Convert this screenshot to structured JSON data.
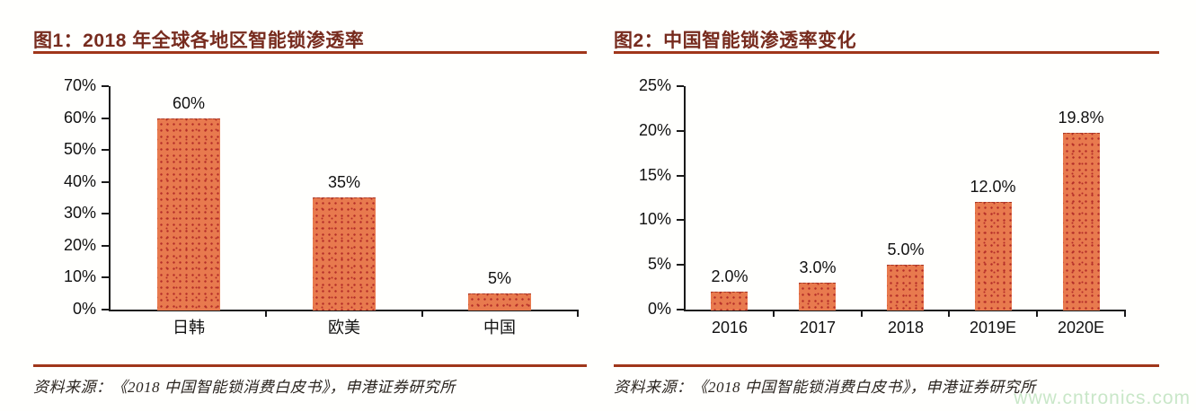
{
  "watermark": {
    "text": "www.cntronics.com",
    "color": "#c9e7c8"
  },
  "colors": {
    "bar_fill": "#e87a4e",
    "bar_dot": "#b42d28",
    "title_text": "#772b1e",
    "rule": "#a0361a",
    "axis_line": "#1a1a1a",
    "label_text": "#111111",
    "source_text": "#2b2520"
  },
  "chart_data": [
    {
      "type": "bar",
      "title": "图1：2018 年全球各地区智能锁渗透率",
      "categories": [
        "日韩",
        "欧美",
        "中国"
      ],
      "values": [
        60,
        35,
        5
      ],
      "data_labels": [
        "60%",
        "35%",
        "5%"
      ],
      "xlabel": "",
      "ylabel": "",
      "ylim": [
        0,
        70
      ],
      "ytick_step": 10,
      "ytick_suffix": "%",
      "grid": false,
      "legend": "none",
      "source": "资料来源：《2018 中国智能锁消费白皮书》，申港证券研究所"
    },
    {
      "type": "bar",
      "title": "图2：中国智能锁渗透率变化",
      "categories": [
        "2016",
        "2017",
        "2018",
        "2019E",
        "2020E"
      ],
      "values": [
        2.0,
        3.0,
        5.0,
        12.0,
        19.8
      ],
      "data_labels": [
        "2.0%",
        "3.0%",
        "5.0%",
        "12.0%",
        "19.8%"
      ],
      "xlabel": "",
      "ylabel": "",
      "ylim": [
        0,
        25
      ],
      "ytick_step": 5,
      "ytick_suffix": "%",
      "grid": false,
      "legend": "none",
      "source": "资料来源：《2018 中国智能锁消费白皮书》，申港证券研究所"
    }
  ]
}
